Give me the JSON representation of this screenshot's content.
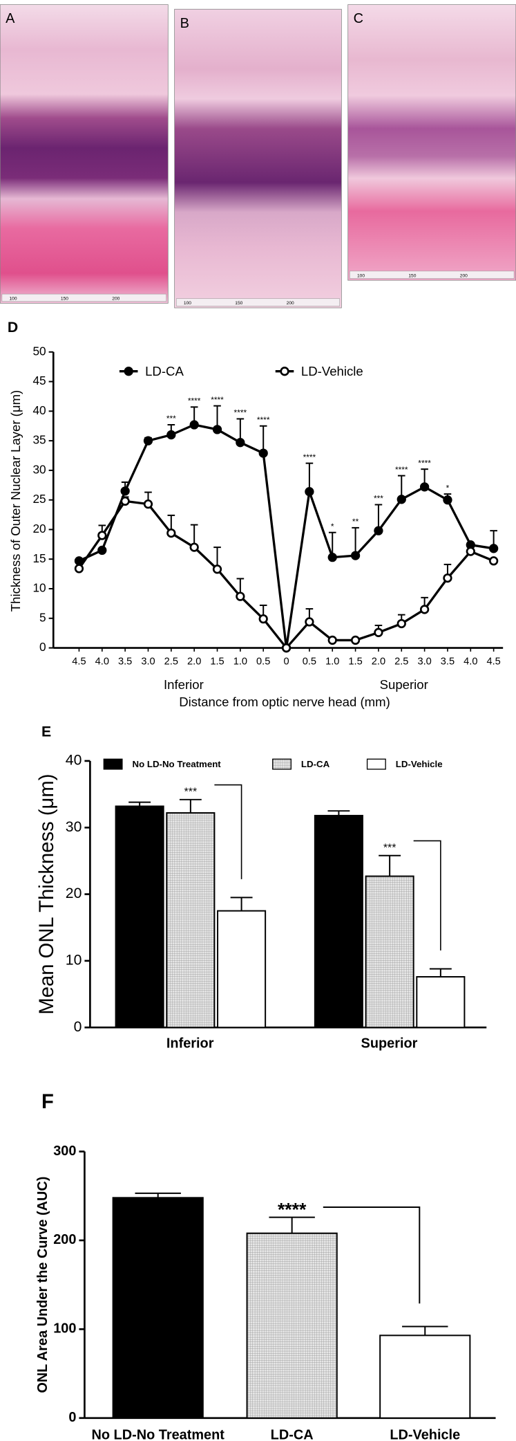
{
  "images": [
    {
      "label": "A",
      "scale_labels": [
        "100",
        "150",
        "200"
      ]
    },
    {
      "label": "B",
      "scale_labels": [
        "100",
        "150",
        "200"
      ]
    },
    {
      "label": "C",
      "scale_labels": [
        "100",
        "150",
        "200"
      ]
    }
  ],
  "chart_data": [
    {
      "type": "line",
      "panel": "D",
      "categories": [
        "4.5",
        "4.0",
        "3.5",
        "3.0",
        "2.5",
        "2.0",
        "1.5",
        "1.0",
        "0.5",
        "0",
        "0.5",
        "1.0",
        "1.5",
        "2.0",
        "2.5",
        "3.0",
        "3.5",
        "4.0",
        "4.5"
      ],
      "x_group_labels": [
        "Inferior",
        "Superior"
      ],
      "x_label": "Distance from optic nerve head (mm)",
      "y_label": "Thickness of Outer Nuclear Layer (μm)",
      "ylim": [
        0,
        50
      ],
      "yticks": [
        0,
        5,
        10,
        15,
        20,
        25,
        30,
        35,
        40,
        45,
        50
      ],
      "series": [
        {
          "name": "LD-CA",
          "color": "#000000",
          "marker": "filled",
          "values": [
            14.7,
            16.5,
            26.5,
            35,
            36,
            37.7,
            36.9,
            34.7,
            32.9,
            0,
            26.4,
            15.3,
            15.6,
            19.8,
            25.1,
            27.2,
            25,
            17.4,
            16.8
          ],
          "errors": [
            0,
            0,
            1.5,
            0.5,
            1.7,
            3,
            4,
            4,
            4.6,
            0,
            4.8,
            4.2,
            4.7,
            4.4,
            4,
            3,
            1,
            0,
            3
          ]
        },
        {
          "name": "LD-Vehicle",
          "color": "#000000",
          "marker": "open",
          "values": [
            13.4,
            19,
            24.8,
            24.3,
            19.4,
            17,
            13.3,
            8.7,
            4.9,
            0,
            4.4,
            1.3,
            1.3,
            2.6,
            4.1,
            6.5,
            11.8,
            16.3,
            14.7
          ],
          "errors": [
            0,
            1.7,
            0.7,
            2,
            3,
            3.8,
            3.7,
            3,
            2.3,
            0,
            2.2,
            0,
            0,
            1.2,
            1.5,
            2,
            2.3,
            0,
            0
          ]
        }
      ],
      "annotations": [
        null,
        null,
        null,
        null,
        "***",
        "****",
        "****",
        "****",
        "****",
        null,
        "****",
        "*",
        "**",
        "***",
        "****",
        "****",
        "*",
        null,
        null
      ]
    },
    {
      "type": "bar",
      "panel": "E",
      "categories": [
        "Inferior",
        "Superior"
      ],
      "y_label": "Mean ONL Thickness (μm)",
      "ylim": [
        0,
        40
      ],
      "yticks": [
        0,
        10,
        20,
        30,
        40
      ],
      "series": [
        {
          "name": "No LD-No Treatment",
          "color": "#000000",
          "values": [
            33.2,
            31.8
          ],
          "errors": [
            0.6,
            0.7
          ]
        },
        {
          "name": "LD-CA",
          "color": "#d4d4d4",
          "pattern": "crosshatch",
          "values": [
            32.2,
            22.7
          ],
          "errors": [
            2,
            3.1
          ]
        },
        {
          "name": "LD-Vehicle",
          "color": "#ffffff",
          "values": [
            17.5,
            7.6
          ],
          "errors": [
            2,
            1.2
          ]
        }
      ],
      "annotations": [
        "***",
        "***"
      ]
    },
    {
      "type": "bar",
      "panel": "F",
      "categories": [
        "No LD-No Treatment",
        "LD-CA",
        "LD-Vehicle"
      ],
      "y_label": "ONL Area Under the Curve (AUC)",
      "ylim": [
        0,
        300
      ],
      "yticks": [
        0,
        100,
        200,
        300
      ],
      "colors": [
        "#000000",
        "#d4d4d4",
        "#ffffff"
      ],
      "patterns": [
        null,
        "crosshatch",
        null
      ],
      "values": [
        248,
        208,
        93
      ],
      "errors": [
        5,
        18,
        10
      ],
      "annotation": "****"
    }
  ]
}
